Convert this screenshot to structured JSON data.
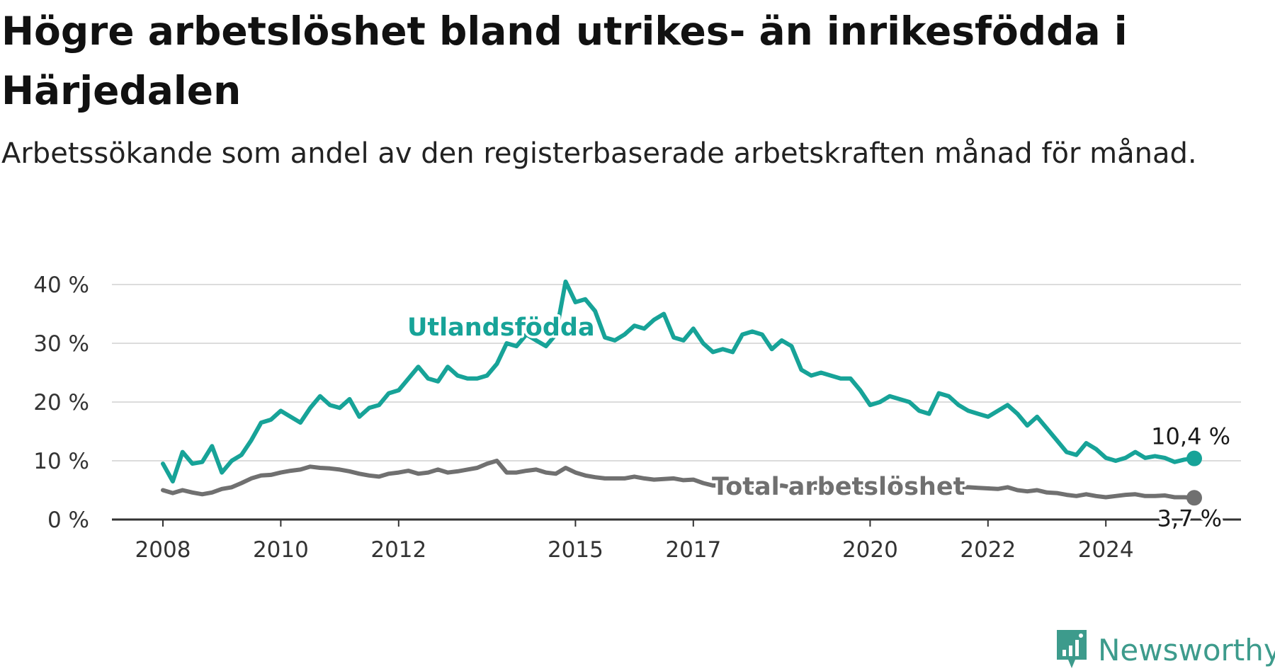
{
  "title": "Högre arbetslöshet bland utrikes- än inrikesfödda i Härjedalen",
  "subtitle": "Arbetssökande som andel av den registerbaserade arbetskraften månad för månad.",
  "brand": {
    "name": "Newsworthy",
    "color": "#3d9b8c"
  },
  "colors": {
    "foreign_born": "#17a398",
    "total": "#707070",
    "grid": "#dcdcdc",
    "axis": "#333333"
  },
  "chart_data": {
    "type": "line",
    "xlabel": "",
    "ylabel": "",
    "ylim": [
      0,
      40
    ],
    "y_ticks": [
      0,
      10,
      20,
      30,
      40
    ],
    "y_tick_labels": [
      "0 %",
      "10 %",
      "20 %",
      "30 %",
      "40 %"
    ],
    "x_ticks": [
      "2008",
      "2010",
      "2012",
      "2015",
      "2017",
      "2020",
      "2022",
      "2024"
    ],
    "grid": true,
    "series": [
      {
        "name": "Utlandsfödda",
        "end_label": "10,4 %",
        "points": [
          [
            "2008-01",
            9.5
          ],
          [
            "2008-03",
            6.5
          ],
          [
            "2008-05",
            11.5
          ],
          [
            "2008-07",
            9.5
          ],
          [
            "2008-09",
            9.8
          ],
          [
            "2008-11",
            12.5
          ],
          [
            "2009-01",
            8.0
          ],
          [
            "2009-03",
            10.0
          ],
          [
            "2009-05",
            11.0
          ],
          [
            "2009-07",
            13.5
          ],
          [
            "2009-09",
            16.5
          ],
          [
            "2009-11",
            17.0
          ],
          [
            "2010-01",
            18.5
          ],
          [
            "2010-03",
            17.5
          ],
          [
            "2010-05",
            16.5
          ],
          [
            "2010-07",
            19.0
          ],
          [
            "2010-09",
            21.0
          ],
          [
            "2010-11",
            19.5
          ],
          [
            "2011-01",
            19.0
          ],
          [
            "2011-03",
            20.5
          ],
          [
            "2011-05",
            17.5
          ],
          [
            "2011-07",
            19.0
          ],
          [
            "2011-09",
            19.5
          ],
          [
            "2011-11",
            21.5
          ],
          [
            "2012-01",
            22.0
          ],
          [
            "2012-03",
            24.0
          ],
          [
            "2012-05",
            26.0
          ],
          [
            "2012-07",
            24.0
          ],
          [
            "2012-09",
            23.5
          ],
          [
            "2012-11",
            26.0
          ],
          [
            "2013-01",
            24.5
          ],
          [
            "2013-03",
            24.0
          ],
          [
            "2013-05",
            24.0
          ],
          [
            "2013-07",
            24.5
          ],
          [
            "2013-09",
            26.5
          ],
          [
            "2013-11",
            30.0
          ],
          [
            "2014-01",
            29.5
          ],
          [
            "2014-03",
            31.5
          ],
          [
            "2014-05",
            30.5
          ],
          [
            "2014-07",
            29.5
          ],
          [
            "2014-09",
            31.5
          ],
          [
            "2014-11",
            40.5
          ],
          [
            "2015-01",
            37.0
          ],
          [
            "2015-03",
            37.5
          ],
          [
            "2015-05",
            35.5
          ],
          [
            "2015-07",
            31.0
          ],
          [
            "2015-09",
            30.5
          ],
          [
            "2015-11",
            31.5
          ],
          [
            "2016-01",
            33.0
          ],
          [
            "2016-03",
            32.5
          ],
          [
            "2016-05",
            34.0
          ],
          [
            "2016-07",
            35.0
          ],
          [
            "2016-09",
            31.0
          ],
          [
            "2016-11",
            30.5
          ],
          [
            "2017-01",
            32.5
          ],
          [
            "2017-03",
            30.0
          ],
          [
            "2017-05",
            28.5
          ],
          [
            "2017-07",
            29.0
          ],
          [
            "2017-09",
            28.5
          ],
          [
            "2017-11",
            31.5
          ],
          [
            "2018-01",
            32.0
          ],
          [
            "2018-03",
            31.5
          ],
          [
            "2018-05",
            29.0
          ],
          [
            "2018-07",
            30.5
          ],
          [
            "2018-09",
            29.5
          ],
          [
            "2018-11",
            25.5
          ],
          [
            "2019-01",
            24.5
          ],
          [
            "2019-03",
            25.0
          ],
          [
            "2019-05",
            24.5
          ],
          [
            "2019-07",
            24.0
          ],
          [
            "2019-09",
            24.0
          ],
          [
            "2019-11",
            22.0
          ],
          [
            "2020-01",
            19.5
          ],
          [
            "2020-03",
            20.0
          ],
          [
            "2020-05",
            21.0
          ],
          [
            "2020-07",
            20.5
          ],
          [
            "2020-09",
            20.0
          ],
          [
            "2020-11",
            18.5
          ],
          [
            "2021-01",
            18.0
          ],
          [
            "2021-03",
            21.5
          ],
          [
            "2021-05",
            21.0
          ],
          [
            "2021-07",
            19.5
          ],
          [
            "2021-09",
            18.5
          ],
          [
            "2021-11",
            18.0
          ],
          [
            "2022-01",
            17.5
          ],
          [
            "2022-03",
            18.5
          ],
          [
            "2022-05",
            19.5
          ],
          [
            "2022-07",
            18.0
          ],
          [
            "2022-09",
            16.0
          ],
          [
            "2022-11",
            17.5
          ],
          [
            "2023-01",
            15.5
          ],
          [
            "2023-03",
            13.5
          ],
          [
            "2023-05",
            11.5
          ],
          [
            "2023-07",
            11.0
          ],
          [
            "2023-09",
            13.0
          ],
          [
            "2023-11",
            12.0
          ],
          [
            "2024-01",
            10.5
          ],
          [
            "2024-03",
            10.0
          ],
          [
            "2024-05",
            10.5
          ],
          [
            "2024-07",
            11.5
          ],
          [
            "2024-09",
            10.5
          ],
          [
            "2024-11",
            10.8
          ],
          [
            "2025-01",
            10.5
          ],
          [
            "2025-03",
            9.8
          ],
          [
            "2025-05",
            10.2
          ],
          [
            "2025-07",
            10.4
          ]
        ]
      },
      {
        "name": "Total arbetslöshet",
        "end_label": "3,7 %",
        "points": [
          [
            "2008-01",
            5.0
          ],
          [
            "2008-03",
            4.5
          ],
          [
            "2008-05",
            5.0
          ],
          [
            "2008-07",
            4.6
          ],
          [
            "2008-09",
            4.3
          ],
          [
            "2008-11",
            4.6
          ],
          [
            "2009-01",
            5.2
          ],
          [
            "2009-03",
            5.5
          ],
          [
            "2009-05",
            6.2
          ],
          [
            "2009-07",
            7.0
          ],
          [
            "2009-09",
            7.5
          ],
          [
            "2009-11",
            7.6
          ],
          [
            "2010-01",
            8.0
          ],
          [
            "2010-03",
            8.3
          ],
          [
            "2010-05",
            8.5
          ],
          [
            "2010-07",
            9.0
          ],
          [
            "2010-09",
            8.8
          ],
          [
            "2010-11",
            8.7
          ],
          [
            "2011-01",
            8.5
          ],
          [
            "2011-03",
            8.2
          ],
          [
            "2011-05",
            7.8
          ],
          [
            "2011-07",
            7.5
          ],
          [
            "2011-09",
            7.3
          ],
          [
            "2011-11",
            7.8
          ],
          [
            "2012-01",
            8.0
          ],
          [
            "2012-03",
            8.3
          ],
          [
            "2012-05",
            7.8
          ],
          [
            "2012-07",
            8.0
          ],
          [
            "2012-09",
            8.5
          ],
          [
            "2012-11",
            8.0
          ],
          [
            "2013-01",
            8.2
          ],
          [
            "2013-03",
            8.5
          ],
          [
            "2013-05",
            8.8
          ],
          [
            "2013-07",
            9.5
          ],
          [
            "2013-09",
            10.0
          ],
          [
            "2013-11",
            8.0
          ],
          [
            "2014-01",
            8.0
          ],
          [
            "2014-03",
            8.3
          ],
          [
            "2014-05",
            8.5
          ],
          [
            "2014-07",
            8.0
          ],
          [
            "2014-09",
            7.8
          ],
          [
            "2014-11",
            8.8
          ],
          [
            "2015-01",
            8.0
          ],
          [
            "2015-03",
            7.5
          ],
          [
            "2015-05",
            7.2
          ],
          [
            "2015-07",
            7.0
          ],
          [
            "2015-09",
            7.0
          ],
          [
            "2015-11",
            7.0
          ],
          [
            "2016-01",
            7.3
          ],
          [
            "2016-03",
            7.0
          ],
          [
            "2016-05",
            6.8
          ],
          [
            "2016-07",
            6.9
          ],
          [
            "2016-09",
            7.0
          ],
          [
            "2016-11",
            6.7
          ],
          [
            "2017-01",
            6.8
          ],
          [
            "2017-03",
            6.2
          ],
          [
            "2017-05",
            5.8
          ],
          [
            "2017-07",
            5.8
          ],
          [
            "2017-09",
            5.9
          ],
          [
            "2017-11",
            5.8
          ],
          [
            "2018-01",
            5.7
          ],
          [
            "2018-03",
            5.8
          ],
          [
            "2018-05",
            5.5
          ],
          [
            "2018-07",
            5.8
          ],
          [
            "2018-09",
            5.5
          ],
          [
            "2018-11",
            5.5
          ],
          [
            "2019-01",
            5.3
          ],
          [
            "2019-03",
            5.5
          ],
          [
            "2019-05",
            5.4
          ],
          [
            "2019-07",
            5.6
          ],
          [
            "2019-09",
            5.4
          ],
          [
            "2019-11",
            5.3
          ],
          [
            "2020-01",
            5.2
          ],
          [
            "2020-03",
            5.4
          ],
          [
            "2020-05",
            5.7
          ],
          [
            "2020-07",
            5.6
          ],
          [
            "2020-09",
            5.8
          ],
          [
            "2020-11",
            5.5
          ],
          [
            "2021-01",
            5.6
          ],
          [
            "2021-03",
            6.0
          ],
          [
            "2021-05",
            5.8
          ],
          [
            "2021-07",
            5.5
          ],
          [
            "2021-09",
            5.5
          ],
          [
            "2021-11",
            5.4
          ],
          [
            "2022-01",
            5.3
          ],
          [
            "2022-03",
            5.2
          ],
          [
            "2022-05",
            5.5
          ],
          [
            "2022-07",
            5.0
          ],
          [
            "2022-09",
            4.8
          ],
          [
            "2022-11",
            5.0
          ],
          [
            "2023-01",
            4.6
          ],
          [
            "2023-03",
            4.5
          ],
          [
            "2023-05",
            4.2
          ],
          [
            "2023-07",
            4.0
          ],
          [
            "2023-09",
            4.3
          ],
          [
            "2023-11",
            4.0
          ],
          [
            "2024-01",
            3.8
          ],
          [
            "2024-03",
            4.0
          ],
          [
            "2024-05",
            4.2
          ],
          [
            "2024-07",
            4.3
          ],
          [
            "2024-09",
            4.0
          ],
          [
            "2024-11",
            4.0
          ],
          [
            "2025-01",
            4.1
          ],
          [
            "2025-03",
            3.8
          ],
          [
            "2025-05",
            3.8
          ],
          [
            "2025-07",
            3.7
          ]
        ]
      }
    ]
  }
}
